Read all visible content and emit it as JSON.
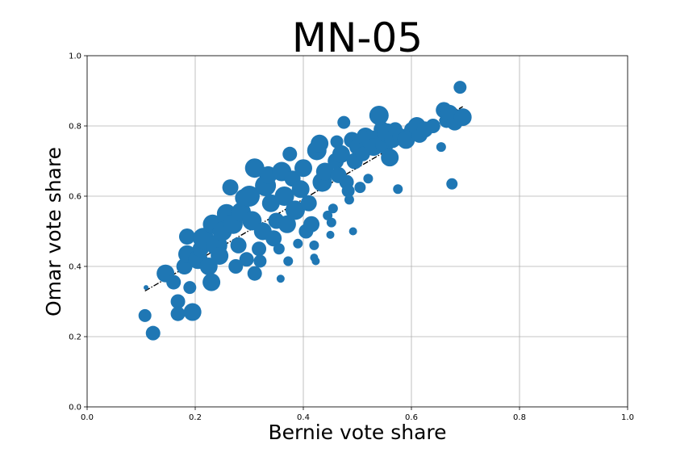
{
  "chart_data": {
    "type": "scatter",
    "title": "MN-05",
    "xlabel": "Bernie vote share",
    "ylabel": "Omar vote share",
    "xlim": [
      0,
      1
    ],
    "ylim": [
      0,
      1
    ],
    "xticks": [
      0.0,
      0.2,
      0.4,
      0.6,
      0.8,
      1.0
    ],
    "yticks": [
      0.0,
      0.2,
      0.4,
      0.6,
      0.8,
      1.0
    ],
    "xtick_labels": [
      "0.0",
      "0.2",
      "0.4",
      "0.6",
      "0.8",
      "1.0"
    ],
    "ytick_labels": [
      "0.0",
      "0.2",
      "0.4",
      "0.6",
      "0.8",
      "1.0"
    ],
    "grid": true,
    "color": "#1f77b4",
    "trend_line": {
      "x": [
        0.107,
        0.695
      ],
      "y": [
        0.33,
        0.855
      ],
      "color": "#000000",
      "style": "dashdot"
    },
    "points": [
      {
        "x": 0.107,
        "y": 0.26,
        "s": 8
      },
      {
        "x": 0.122,
        "y": 0.21,
        "s": 9
      },
      {
        "x": 0.109,
        "y": 0.34,
        "s": 3
      },
      {
        "x": 0.145,
        "y": 0.38,
        "s": 11
      },
      {
        "x": 0.16,
        "y": 0.355,
        "s": 9
      },
      {
        "x": 0.168,
        "y": 0.3,
        "s": 9
      },
      {
        "x": 0.168,
        "y": 0.265,
        "s": 9
      },
      {
        "x": 0.18,
        "y": 0.4,
        "s": 10
      },
      {
        "x": 0.185,
        "y": 0.435,
        "s": 11
      },
      {
        "x": 0.185,
        "y": 0.485,
        "s": 10
      },
      {
        "x": 0.19,
        "y": 0.34,
        "s": 8
      },
      {
        "x": 0.195,
        "y": 0.27,
        "s": 11
      },
      {
        "x": 0.205,
        "y": 0.42,
        "s": 12
      },
      {
        "x": 0.21,
        "y": 0.45,
        "s": 10
      },
      {
        "x": 0.215,
        "y": 0.48,
        "s": 13
      },
      {
        "x": 0.225,
        "y": 0.4,
        "s": 11
      },
      {
        "x": 0.23,
        "y": 0.355,
        "s": 11
      },
      {
        "x": 0.232,
        "y": 0.52,
        "s": 12
      },
      {
        "x": 0.24,
        "y": 0.46,
        "s": 13
      },
      {
        "x": 0.245,
        "y": 0.43,
        "s": 11
      },
      {
        "x": 0.25,
        "y": 0.5,
        "s": 12
      },
      {
        "x": 0.258,
        "y": 0.55,
        "s": 12
      },
      {
        "x": 0.265,
        "y": 0.625,
        "s": 10
      },
      {
        "x": 0.27,
        "y": 0.52,
        "s": 12
      },
      {
        "x": 0.275,
        "y": 0.4,
        "s": 9
      },
      {
        "x": 0.28,
        "y": 0.46,
        "s": 10
      },
      {
        "x": 0.285,
        "y": 0.555,
        "s": 12
      },
      {
        "x": 0.29,
        "y": 0.595,
        "s": 11
      },
      {
        "x": 0.295,
        "y": 0.42,
        "s": 9
      },
      {
        "x": 0.3,
        "y": 0.6,
        "s": 13
      },
      {
        "x": 0.305,
        "y": 0.53,
        "s": 12
      },
      {
        "x": 0.31,
        "y": 0.68,
        "s": 12
      },
      {
        "x": 0.31,
        "y": 0.38,
        "s": 9
      },
      {
        "x": 0.318,
        "y": 0.45,
        "s": 9
      },
      {
        "x": 0.32,
        "y": 0.415,
        "s": 8
      },
      {
        "x": 0.325,
        "y": 0.5,
        "s": 11
      },
      {
        "x": 0.33,
        "y": 0.63,
        "s": 13
      },
      {
        "x": 0.335,
        "y": 0.66,
        "s": 11
      },
      {
        "x": 0.34,
        "y": 0.58,
        "s": 11
      },
      {
        "x": 0.345,
        "y": 0.48,
        "s": 10
      },
      {
        "x": 0.35,
        "y": 0.53,
        "s": 10
      },
      {
        "x": 0.355,
        "y": 0.45,
        "s": 7
      },
      {
        "x": 0.358,
        "y": 0.365,
        "s": 5
      },
      {
        "x": 0.36,
        "y": 0.67,
        "s": 12
      },
      {
        "x": 0.365,
        "y": 0.6,
        "s": 12
      },
      {
        "x": 0.37,
        "y": 0.52,
        "s": 11
      },
      {
        "x": 0.372,
        "y": 0.415,
        "s": 6
      },
      {
        "x": 0.375,
        "y": 0.72,
        "s": 9
      },
      {
        "x": 0.38,
        "y": 0.65,
        "s": 10
      },
      {
        "x": 0.385,
        "y": 0.56,
        "s": 12
      },
      {
        "x": 0.39,
        "y": 0.465,
        "s": 6
      },
      {
        "x": 0.395,
        "y": 0.62,
        "s": 11
      },
      {
        "x": 0.4,
        "y": 0.68,
        "s": 11
      },
      {
        "x": 0.405,
        "y": 0.5,
        "s": 9
      },
      {
        "x": 0.41,
        "y": 0.58,
        "s": 10
      },
      {
        "x": 0.415,
        "y": 0.52,
        "s": 10
      },
      {
        "x": 0.42,
        "y": 0.46,
        "s": 6
      },
      {
        "x": 0.42,
        "y": 0.425,
        "s": 5
      },
      {
        "x": 0.423,
        "y": 0.415,
        "s": 5
      },
      {
        "x": 0.425,
        "y": 0.73,
        "s": 12
      },
      {
        "x": 0.43,
        "y": 0.75,
        "s": 11
      },
      {
        "x": 0.435,
        "y": 0.64,
        "s": 12
      },
      {
        "x": 0.44,
        "y": 0.67,
        "s": 11
      },
      {
        "x": 0.445,
        "y": 0.545,
        "s": 6
      },
      {
        "x": 0.45,
        "y": 0.49,
        "s": 5
      },
      {
        "x": 0.452,
        "y": 0.525,
        "s": 6
      },
      {
        "x": 0.455,
        "y": 0.565,
        "s": 6
      },
      {
        "x": 0.46,
        "y": 0.7,
        "s": 10
      },
      {
        "x": 0.462,
        "y": 0.755,
        "s": 8
      },
      {
        "x": 0.465,
        "y": 0.66,
        "s": 10
      },
      {
        "x": 0.47,
        "y": 0.72,
        "s": 11
      },
      {
        "x": 0.475,
        "y": 0.81,
        "s": 8
      },
      {
        "x": 0.48,
        "y": 0.64,
        "s": 9
      },
      {
        "x": 0.483,
        "y": 0.615,
        "s": 8
      },
      {
        "x": 0.485,
        "y": 0.59,
        "s": 6
      },
      {
        "x": 0.49,
        "y": 0.76,
        "s": 10
      },
      {
        "x": 0.492,
        "y": 0.5,
        "s": 5
      },
      {
        "x": 0.495,
        "y": 0.7,
        "s": 10
      },
      {
        "x": 0.5,
        "y": 0.74,
        "s": 10
      },
      {
        "x": 0.505,
        "y": 0.625,
        "s": 7
      },
      {
        "x": 0.51,
        "y": 0.72,
        "s": 9
      },
      {
        "x": 0.515,
        "y": 0.77,
        "s": 11
      },
      {
        "x": 0.52,
        "y": 0.65,
        "s": 6
      },
      {
        "x": 0.525,
        "y": 0.76,
        "s": 12
      },
      {
        "x": 0.53,
        "y": 0.74,
        "s": 11
      },
      {
        "x": 0.54,
        "y": 0.83,
        "s": 12
      },
      {
        "x": 0.545,
        "y": 0.79,
        "s": 10
      },
      {
        "x": 0.55,
        "y": 0.745,
        "s": 11
      },
      {
        "x": 0.555,
        "y": 0.78,
        "s": 12
      },
      {
        "x": 0.56,
        "y": 0.71,
        "s": 11
      },
      {
        "x": 0.565,
        "y": 0.76,
        "s": 10
      },
      {
        "x": 0.57,
        "y": 0.79,
        "s": 9
      },
      {
        "x": 0.575,
        "y": 0.62,
        "s": 6
      },
      {
        "x": 0.58,
        "y": 0.77,
        "s": 10
      },
      {
        "x": 0.59,
        "y": 0.76,
        "s": 11
      },
      {
        "x": 0.6,
        "y": 0.79,
        "s": 9
      },
      {
        "x": 0.61,
        "y": 0.8,
        "s": 11
      },
      {
        "x": 0.615,
        "y": 0.775,
        "s": 10
      },
      {
        "x": 0.625,
        "y": 0.79,
        "s": 10
      },
      {
        "x": 0.64,
        "y": 0.8,
        "s": 9
      },
      {
        "x": 0.655,
        "y": 0.74,
        "s": 6
      },
      {
        "x": 0.66,
        "y": 0.845,
        "s": 10
      },
      {
        "x": 0.665,
        "y": 0.815,
        "s": 9
      },
      {
        "x": 0.67,
        "y": 0.835,
        "s": 11
      },
      {
        "x": 0.675,
        "y": 0.635,
        "s": 7
      },
      {
        "x": 0.68,
        "y": 0.81,
        "s": 10
      },
      {
        "x": 0.69,
        "y": 0.91,
        "s": 8
      },
      {
        "x": 0.695,
        "y": 0.825,
        "s": 11
      }
    ]
  }
}
